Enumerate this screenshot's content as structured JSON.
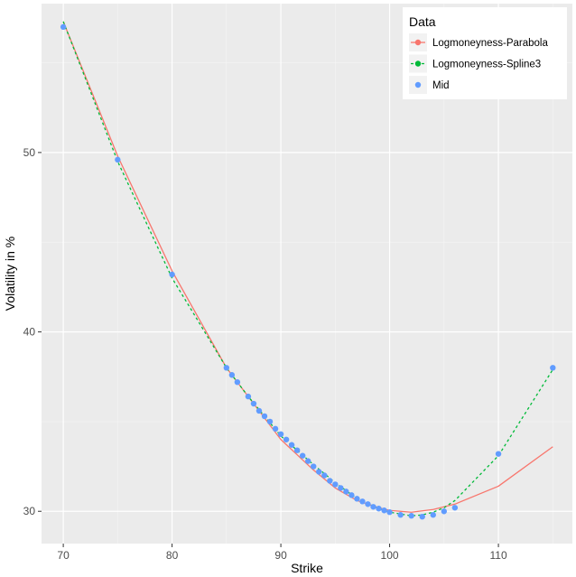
{
  "chart_data": {
    "type": "line",
    "title": "",
    "xlabel": "Strike",
    "ylabel": "Volatility in %",
    "xlim": [
      68.0,
      116.8
    ],
    "ylim": [
      28.2,
      58.3
    ],
    "xticks": [
      70,
      80,
      90,
      100,
      110
    ],
    "yticks": [
      30,
      40,
      50
    ],
    "grid": true,
    "legend": {
      "title": "Data",
      "placement": "top-right"
    },
    "series": [
      {
        "name": "Logmoneyness-Parabola",
        "color": "#F8766D",
        "style": "solid",
        "markers": false,
        "x": [
          70,
          75,
          80,
          85,
          87,
          90,
          93,
          95,
          97,
          99,
          100,
          102,
          104,
          106,
          110,
          115
        ],
        "y": [
          57.3,
          49.8,
          43.4,
          38.0,
          36.4,
          34.0,
          32.3,
          31.3,
          30.6,
          30.2,
          30.05,
          29.95,
          30.1,
          30.4,
          31.4,
          33.6
        ]
      },
      {
        "name": "Logmoneyness-Spline3",
        "color": "#00BA38",
        "style": "dotted",
        "markers": false,
        "x": [
          70,
          75,
          80,
          85,
          87,
          90,
          93,
          95,
          97,
          99,
          100,
          102,
          103,
          104,
          105,
          106,
          110,
          115
        ],
        "y": [
          57.3,
          49.5,
          43.0,
          38.0,
          36.4,
          34.2,
          32.6,
          31.6,
          30.7,
          30.15,
          29.95,
          29.75,
          29.8,
          29.95,
          30.2,
          30.6,
          33.1,
          37.9
        ]
      },
      {
        "name": "Mid",
        "color": "#619CFF",
        "style": "none",
        "markers": true,
        "x": [
          70,
          75,
          80,
          85,
          85.5,
          86,
          87,
          87.5,
          88,
          88.5,
          89,
          89.5,
          90,
          90.5,
          91,
          91.5,
          92,
          92.5,
          93,
          93.5,
          94,
          94.5,
          95,
          95.5,
          96,
          96.5,
          97,
          97.5,
          98,
          98.5,
          99,
          99.5,
          100,
          101,
          102,
          103,
          104,
          105,
          106,
          110,
          115
        ],
        "y": [
          57.0,
          49.6,
          43.2,
          38.0,
          37.6,
          37.2,
          36.4,
          36.0,
          35.6,
          35.3,
          35.0,
          34.6,
          34.3,
          34.0,
          33.7,
          33.4,
          33.1,
          32.8,
          32.5,
          32.2,
          32.0,
          31.7,
          31.5,
          31.3,
          31.1,
          30.9,
          30.7,
          30.55,
          30.4,
          30.25,
          30.15,
          30.05,
          29.95,
          29.8,
          29.75,
          29.7,
          29.8,
          30.0,
          30.2,
          33.2,
          38.0
        ]
      }
    ]
  }
}
